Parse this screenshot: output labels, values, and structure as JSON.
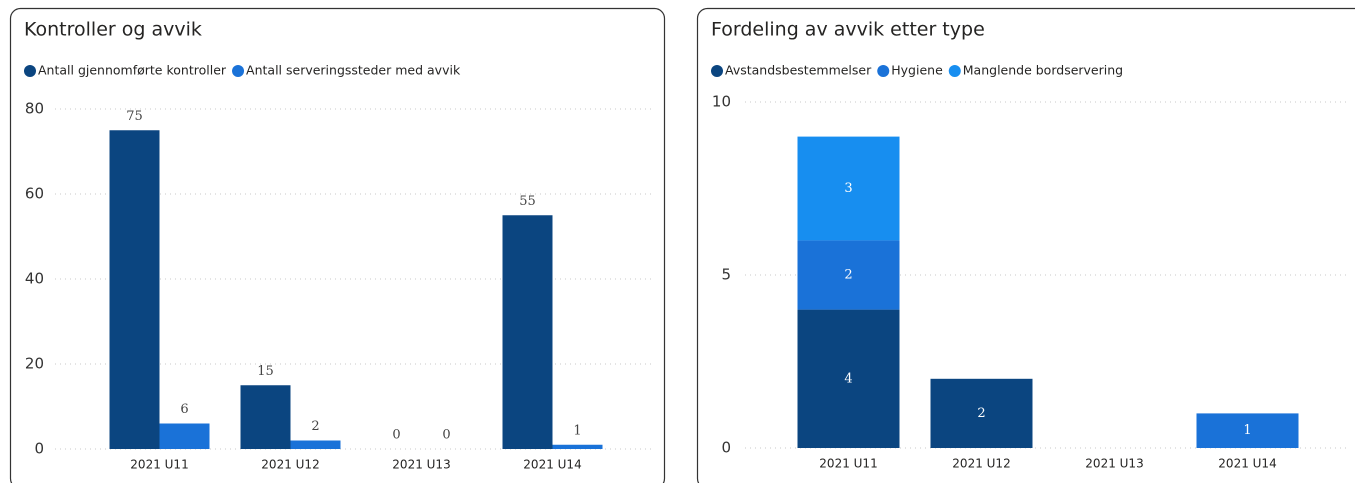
{
  "chart_data": [
    {
      "type": "grouped_bar",
      "title": "Kontroller og avvik",
      "categories": [
        "2021 U11",
        "2021 U12",
        "2021 U13",
        "2021 U14"
      ],
      "series": [
        {
          "name": "Antall gjennomførte kontroller",
          "color": "#0b4580",
          "values": [
            75,
            15,
            0,
            55
          ]
        },
        {
          "name": "Antall serveringssteder med avvik",
          "color": "#1a72d8",
          "values": [
            6,
            2,
            0,
            1
          ]
        }
      ],
      "ylim": [
        0,
        80
      ],
      "yticks": [
        0,
        20,
        40,
        60,
        80
      ],
      "grid": true
    },
    {
      "type": "stacked_bar",
      "title": "Fordeling av avvik etter type",
      "categories": [
        "2021 U11",
        "2021 U12",
        "2021 U13",
        "2021 U14"
      ],
      "series": [
        {
          "name": "Avstandsbestemmelser",
          "color": "#0b4580",
          "values": [
            4,
            2,
            null,
            null
          ]
        },
        {
          "name": "Hygiene",
          "color": "#1a72d8",
          "values": [
            2,
            null,
            null,
            1
          ]
        },
        {
          "name": "Manglende bordservering",
          "color": "#178ef0",
          "values": [
            3,
            null,
            null,
            null
          ]
        }
      ],
      "ylim": [
        0,
        10
      ],
      "yticks": [
        0,
        5,
        10
      ],
      "grid": true
    }
  ]
}
